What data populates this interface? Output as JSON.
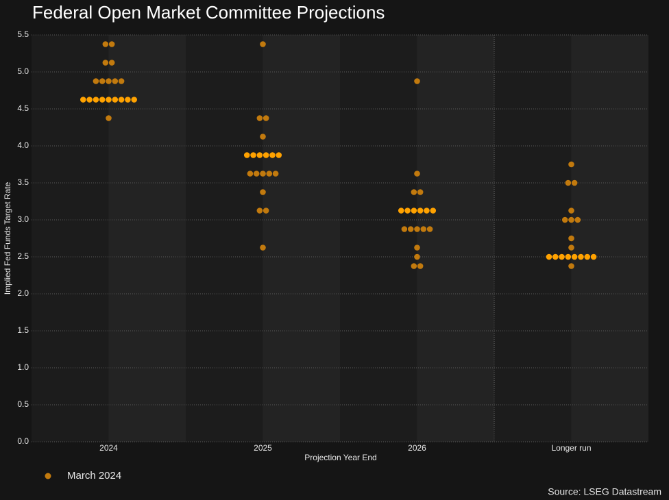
{
  "chart_data": {
    "type": "dot",
    "title": "Federal Open Market Committee Projections",
    "y_label": "Implied Fed Funds Target Rate",
    "x_label": "Projection Year End",
    "source": "Source: LSEG Datastream",
    "categories": [
      "2024",
      "2025",
      "2026",
      "Longer run"
    ],
    "series": [
      {
        "name": "March 2024",
        "color": "#c27a0e",
        "highlight_color": "#ffa200",
        "values": [
          [
            5.375,
            5.375,
            5.125,
            5.125,
            4.875,
            4.875,
            4.875,
            4.875,
            4.875,
            4.625,
            4.625,
            4.625,
            4.625,
            4.625,
            4.625,
            4.625,
            4.625,
            4.625,
            4.375
          ],
          [
            5.375,
            4.375,
            4.375,
            4.125,
            3.875,
            3.875,
            3.875,
            3.875,
            3.875,
            3.875,
            3.625,
            3.625,
            3.625,
            3.625,
            3.625,
            3.375,
            3.125,
            3.125,
            2.625
          ],
          [
            4.875,
            3.625,
            3.375,
            3.375,
            3.125,
            3.125,
            3.125,
            3.125,
            3.125,
            3.125,
            2.875,
            2.875,
            2.875,
            2.875,
            2.875,
            2.625,
            2.5,
            2.375,
            2.375
          ],
          [
            3.75,
            3.5,
            3.5,
            3.125,
            3.0,
            3.0,
            3.0,
            2.75,
            2.625,
            2.5,
            2.5,
            2.5,
            2.5,
            2.5,
            2.5,
            2.5,
            2.5,
            2.375
          ]
        ]
      }
    ],
    "ylim": [
      0,
      5.5
    ],
    "yticks": [
      {
        "value": 0,
        "label": "0.0"
      },
      0.5,
      {
        "value": 1,
        "label": "1.0"
      },
      1.5,
      {
        "value": 2,
        "label": "2.0"
      },
      2.5,
      {
        "value": 3,
        "label": "3.0"
      },
      3.5,
      {
        "value": 4,
        "label": "4.0"
      },
      4.5,
      {
        "value": 5,
        "label": "5.0"
      },
      5.5
    ],
    "grid": true
  }
}
